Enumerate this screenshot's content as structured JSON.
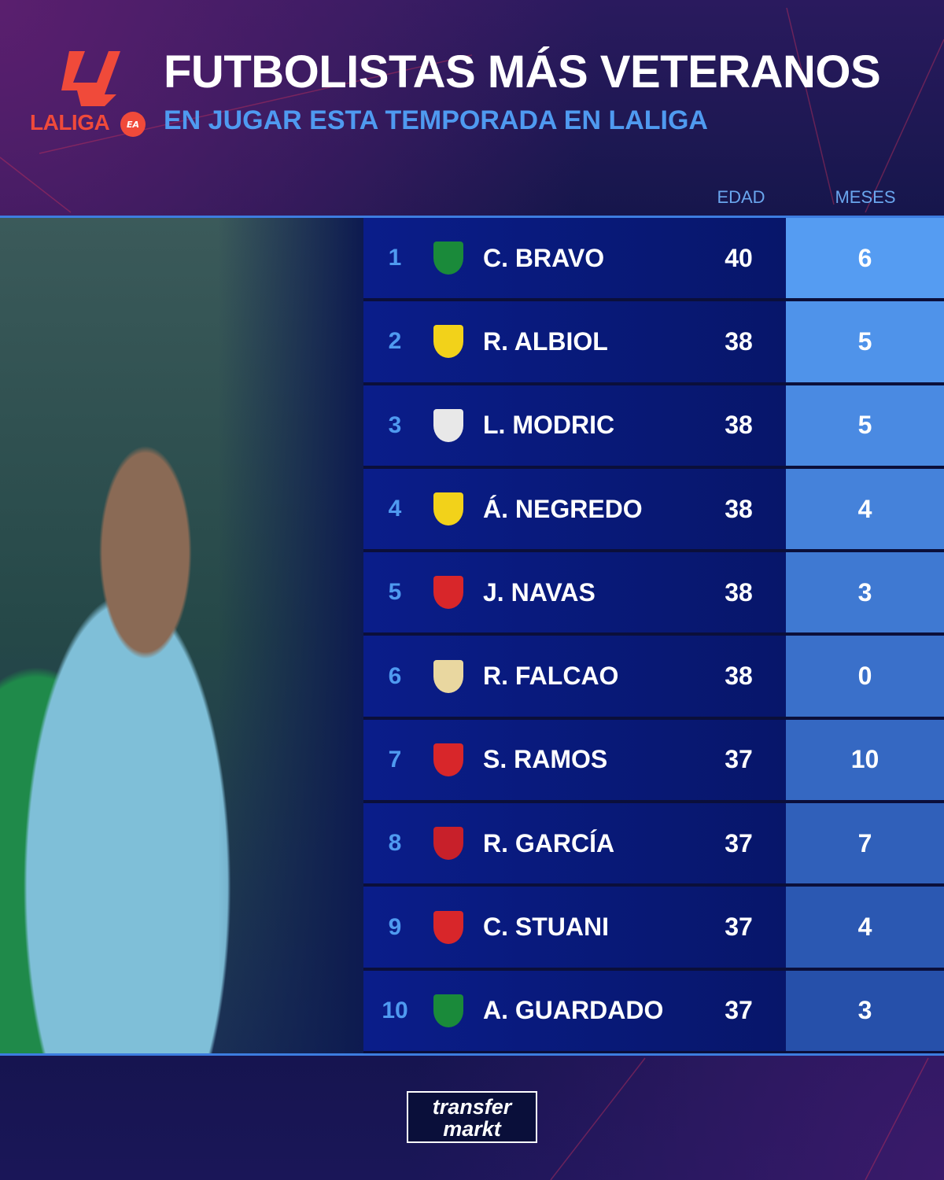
{
  "header": {
    "logo_text": "LALIGA",
    "logo_badge": "EA",
    "title": "FUTBOLISTAS MÁS VETERANOS",
    "subtitle": "EN JUGAR ESTA TEMPORADA EN LALIGA"
  },
  "columns": {
    "age": "EDAD",
    "months": "MESES"
  },
  "rows": [
    {
      "rank": "1",
      "club_icon": "real-betis-crest",
      "crest_color": "#1a8a3a",
      "name": "C. BRAVO",
      "age": "40",
      "months": "6"
    },
    {
      "rank": "2",
      "club_icon": "villarreal-crest",
      "crest_color": "#f2d21a",
      "name": "R. ALBIOL",
      "age": "38",
      "months": "5"
    },
    {
      "rank": "3",
      "club_icon": "real-madrid-crest",
      "crest_color": "#e8e8e8",
      "name": "L. MODRIC",
      "age": "38",
      "months": "5"
    },
    {
      "rank": "4",
      "club_icon": "cadiz-crest",
      "crest_color": "#f2d21a",
      "name": "Á. NEGREDO",
      "age": "38",
      "months": "4"
    },
    {
      "rank": "5",
      "club_icon": "sevilla-crest",
      "crest_color": "#d8262a",
      "name": "J. NAVAS",
      "age": "38",
      "months": "3"
    },
    {
      "rank": "6",
      "club_icon": "rayo-vallecano-crest",
      "crest_color": "#e9d7a0",
      "name": "R. FALCAO",
      "age": "38",
      "months": "0"
    },
    {
      "rank": "7",
      "club_icon": "sevilla-crest",
      "crest_color": "#d8262a",
      "name": "S. RAMOS",
      "age": "37",
      "months": "10"
    },
    {
      "rank": "8",
      "club_icon": "athletic-club-crest",
      "crest_color": "#c8202a",
      "name": "R. GARCÍA",
      "age": "37",
      "months": "7"
    },
    {
      "rank": "9",
      "club_icon": "girona-crest",
      "crest_color": "#d8262a",
      "name": "C. STUANI",
      "age": "37",
      "months": "4"
    },
    {
      "rank": "10",
      "club_icon": "real-betis-crest",
      "crest_color": "#1a8a3a",
      "name": "A. GUARDADO",
      "age": "37",
      "months": "3"
    }
  ],
  "months_colors": [
    "#559cf2",
    "#4f93ea",
    "#4a8ae2",
    "#4582da",
    "#3f79d2",
    "#3a70ca",
    "#3568c2",
    "#3060ba",
    "#2b58b2",
    "#2650aa"
  ],
  "footer": {
    "brand_line1": "transfer",
    "brand_line2": "markt"
  },
  "colors": {
    "accent": "#4f9af0",
    "laliga_red": "#f04a3a",
    "row_bg": "#0a1d8a"
  }
}
